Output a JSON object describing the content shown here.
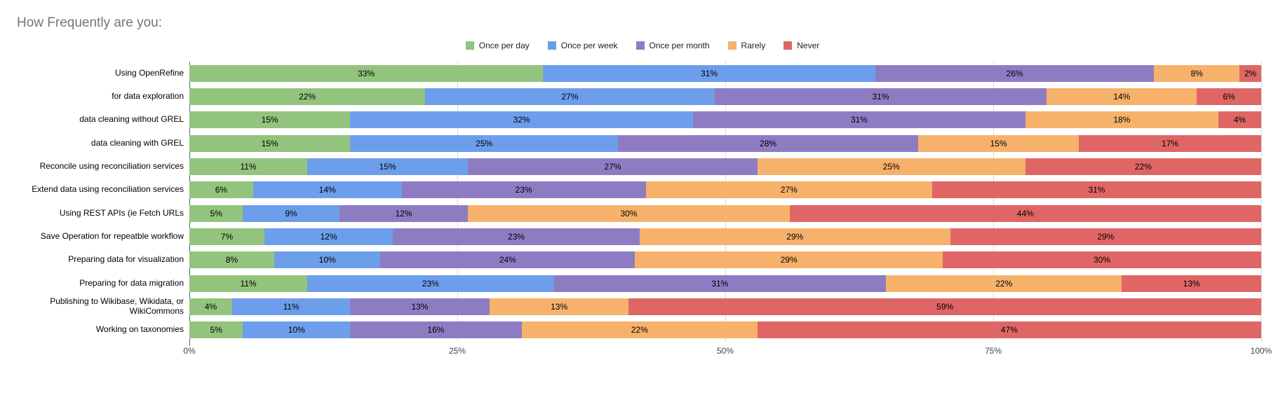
{
  "title": "How Frequently are you:",
  "chart_data": {
    "type": "bar",
    "orientation": "horizontal-stacked",
    "title": "How Frequently are you:",
    "categories": [
      "Using OpenRefine",
      "for data exploration",
      "data cleaning without GREL",
      "data cleaning with GREL",
      "Reconcile using reconciliation services",
      "Extend data using reconciliation services",
      "Using REST APIs (ie Fetch URLs",
      "Save Operation for repeatble workflow",
      "Preparing data for visualization",
      "Preparing for data migration",
      "Publishing to Wikibase, Wikidata, or WikiCommons",
      "Working on taxonomies"
    ],
    "series": [
      {
        "name": "Once per day",
        "color": "#93c47d",
        "values": [
          33,
          22,
          15,
          15,
          11,
          6,
          5,
          7,
          8,
          11,
          4,
          5
        ]
      },
      {
        "name": "Once per week",
        "color": "#6d9eeb",
        "values": [
          31,
          27,
          32,
          25,
          15,
          14,
          9,
          12,
          10,
          23,
          11,
          10
        ]
      },
      {
        "name": "Once per month",
        "color": "#8e7cc3",
        "values": [
          26,
          31,
          31,
          28,
          27,
          23,
          12,
          23,
          24,
          31,
          13,
          16
        ]
      },
      {
        "name": "Rarely",
        "color": "#f6b26b",
        "values": [
          8,
          14,
          18,
          15,
          25,
          27,
          30,
          29,
          29,
          22,
          13,
          22
        ]
      },
      {
        "name": "Never",
        "color": "#e06666",
        "values": [
          2,
          6,
          4,
          17,
          22,
          31,
          44,
          29,
          30,
          13,
          59,
          47
        ]
      }
    ],
    "value_suffix": "%",
    "x_ticks": [
      "0%",
      "25%",
      "50%",
      "75%",
      "100%"
    ],
    "xlim": [
      0,
      100
    ],
    "grid": true,
    "legend_position": "top"
  },
  "colors": {
    "title_text": "#757575",
    "axis_line": "#616161",
    "gridline": "#dadada",
    "label_text": "#000000",
    "tick_text": "#424242"
  }
}
